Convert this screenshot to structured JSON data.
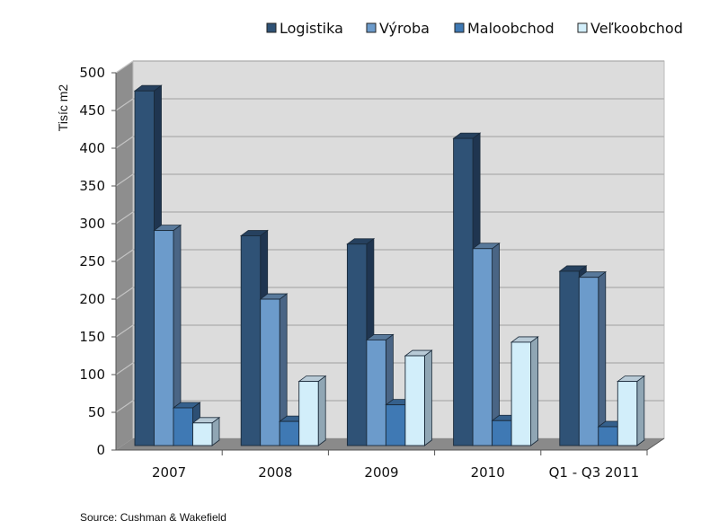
{
  "chart_data": {
    "type": "bar",
    "title": "",
    "xlabel": "",
    "ylabel": "Tisíc m2",
    "ylim": [
      0,
      500
    ],
    "yticks": [
      0,
      50,
      100,
      150,
      200,
      250,
      300,
      350,
      400,
      450,
      500
    ],
    "grid": true,
    "legend_position": "top-right",
    "categories": [
      "2007",
      "2008",
      "2009",
      "2010",
      "Q1 - Q3 2011"
    ],
    "series": [
      {
        "name": "Logistika",
        "color": "#2f5276",
        "values": [
          470,
          278,
          267,
          407,
          231
        ]
      },
      {
        "name": "Výroba",
        "color": "#6c9bcb",
        "values": [
          285,
          194,
          140,
          261,
          223
        ]
      },
      {
        "name": "Maloobchod",
        "color": "#3f79b4",
        "values": [
          50,
          32,
          54,
          33,
          25
        ]
      },
      {
        "name": "Veľkoobchod",
        "color": "#d2eefa",
        "values": [
          30,
          85,
          119,
          137,
          85
        ]
      }
    ]
  },
  "source": "Source: Cushman & Wakefield"
}
